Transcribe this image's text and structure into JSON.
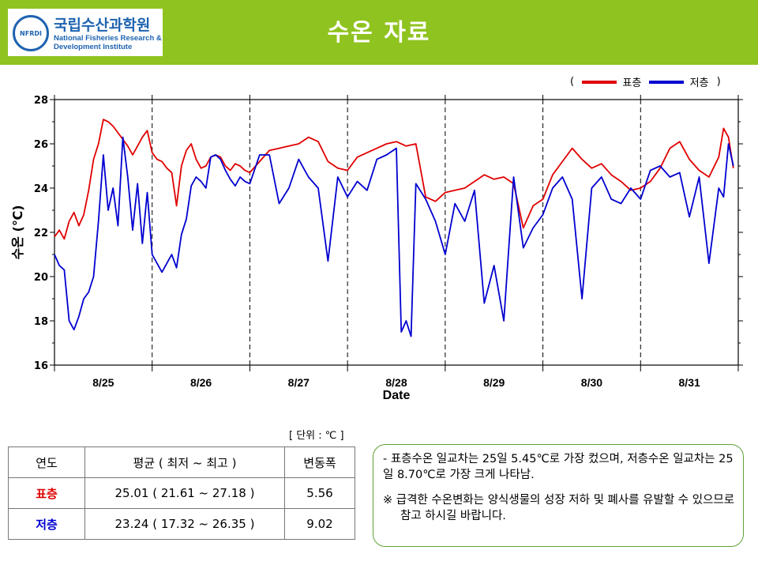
{
  "header": {
    "title": "수온 자료",
    "logo_kr": "국립수산과학원",
    "logo_en_line1": "National Fisheries Research &",
    "logo_en_line2": "Development Institute",
    "logo_emblem": "NFRDI"
  },
  "legend": {
    "open": "(",
    "surface": "표층",
    "bottom": "저층",
    "close": ")"
  },
  "chart_data": {
    "type": "line",
    "xlabel": "Date",
    "ylabel": "수온 (℃)",
    "ylim": [
      16,
      28
    ],
    "yticks": [
      16,
      18,
      20,
      22,
      24,
      26,
      28
    ],
    "x_range": [
      0,
      7
    ],
    "day_labels": [
      "8/25",
      "8/26",
      "8/27",
      "8/28",
      "8/29",
      "8/30",
      "8/31"
    ],
    "grid": "dashed vertical lines at day boundaries",
    "legend_position": "top-right",
    "series": [
      {
        "name": "표층",
        "color": "#e00000",
        "x": [
          0,
          0.05,
          0.1,
          0.15,
          0.2,
          0.25,
          0.3,
          0.35,
          0.4,
          0.45,
          0.5,
          0.55,
          0.6,
          0.65,
          0.7,
          0.75,
          0.8,
          0.85,
          0.9,
          0.95,
          1.0,
          1.05,
          1.1,
          1.15,
          1.2,
          1.25,
          1.3,
          1.35,
          1.4,
          1.45,
          1.5,
          1.55,
          1.6,
          1.65,
          1.7,
          1.75,
          1.8,
          1.85,
          1.9,
          1.95,
          2.0,
          2.1,
          2.2,
          2.3,
          2.4,
          2.5,
          2.6,
          2.7,
          2.8,
          2.9,
          3.0,
          3.1,
          3.2,
          3.3,
          3.4,
          3.5,
          3.6,
          3.7,
          3.8,
          3.9,
          4.0,
          4.1,
          4.2,
          4.3,
          4.4,
          4.5,
          4.6,
          4.7,
          4.8,
          4.9,
          5.0,
          5.1,
          5.2,
          5.3,
          5.4,
          5.5,
          5.6,
          5.7,
          5.8,
          5.9,
          6.0,
          6.1,
          6.2,
          6.3,
          6.4,
          6.5,
          6.6,
          6.7,
          6.8,
          6.85,
          6.9,
          6.95
        ],
        "values": [
          21.8,
          22.1,
          21.7,
          22.5,
          22.9,
          22.3,
          22.8,
          23.9,
          25.3,
          26.0,
          27.1,
          27.0,
          26.8,
          26.5,
          26.2,
          25.9,
          25.5,
          25.9,
          26.3,
          26.6,
          25.6,
          25.3,
          25.2,
          24.9,
          24.7,
          23.2,
          25.0,
          25.7,
          26.0,
          25.3,
          24.9,
          25.0,
          25.4,
          25.5,
          25.4,
          25.0,
          24.8,
          25.1,
          25.0,
          24.8,
          24.7,
          25.2,
          25.7,
          25.8,
          25.9,
          26.0,
          26.3,
          26.1,
          25.2,
          24.9,
          24.8,
          25.4,
          25.6,
          25.8,
          26.0,
          26.1,
          25.9,
          26.0,
          23.6,
          23.4,
          23.8,
          23.9,
          24.0,
          24.3,
          24.6,
          24.4,
          24.5,
          24.2,
          22.2,
          23.2,
          23.5,
          24.6,
          25.2,
          25.8,
          25.3,
          24.9,
          25.1,
          24.6,
          24.3,
          23.9,
          24.0,
          24.3,
          24.9,
          25.8,
          26.1,
          25.3,
          24.8,
          24.5,
          25.4,
          26.7,
          26.3,
          24.9
        ]
      },
      {
        "name": "저층",
        "color": "#0000d0",
        "x": [
          0,
          0.05,
          0.1,
          0.15,
          0.2,
          0.25,
          0.3,
          0.35,
          0.4,
          0.45,
          0.5,
          0.55,
          0.6,
          0.65,
          0.7,
          0.75,
          0.8,
          0.85,
          0.9,
          0.95,
          1.0,
          1.05,
          1.1,
          1.15,
          1.2,
          1.25,
          1.3,
          1.35,
          1.4,
          1.45,
          1.5,
          1.55,
          1.6,
          1.65,
          1.7,
          1.75,
          1.8,
          1.85,
          1.9,
          1.95,
          2.0,
          2.1,
          2.2,
          2.3,
          2.4,
          2.5,
          2.6,
          2.7,
          2.8,
          2.9,
          3.0,
          3.1,
          3.2,
          3.3,
          3.4,
          3.5,
          3.55,
          3.6,
          3.65,
          3.7,
          3.8,
          3.9,
          4.0,
          4.1,
          4.2,
          4.3,
          4.4,
          4.5,
          4.6,
          4.7,
          4.8,
          4.9,
          5.0,
          5.1,
          5.2,
          5.3,
          5.4,
          5.5,
          5.6,
          5.7,
          5.8,
          5.9,
          6.0,
          6.1,
          6.2,
          6.3,
          6.4,
          6.5,
          6.6,
          6.7,
          6.8,
          6.85,
          6.9,
          6.95
        ],
        "values": [
          21.0,
          20.5,
          20.3,
          18.0,
          17.6,
          18.2,
          19.0,
          19.3,
          20.0,
          22.5,
          25.5,
          23.0,
          24.0,
          22.3,
          26.3,
          24.5,
          22.1,
          24.2,
          21.5,
          23.8,
          21.0,
          20.6,
          20.2,
          20.6,
          21.0,
          20.4,
          21.9,
          22.6,
          24.1,
          24.5,
          24.3,
          24.0,
          25.4,
          25.5,
          25.3,
          24.8,
          24.4,
          24.1,
          24.5,
          24.3,
          24.2,
          25.5,
          25.5,
          23.3,
          24.0,
          25.3,
          24.5,
          24.0,
          20.7,
          24.5,
          23.6,
          24.3,
          23.9,
          25.3,
          25.5,
          25.8,
          17.5,
          18.0,
          17.3,
          24.2,
          23.5,
          22.5,
          21.0,
          23.3,
          22.5,
          23.9,
          18.8,
          20.5,
          18.0,
          24.5,
          21.3,
          22.2,
          22.8,
          24.0,
          24.5,
          23.5,
          19.0,
          24.0,
          24.5,
          23.5,
          23.3,
          24.0,
          23.5,
          24.8,
          25.0,
          24.5,
          24.7,
          22.7,
          24.5,
          20.6,
          24.0,
          23.6,
          26.0,
          25.0
        ]
      }
    ]
  },
  "unit_note": "[ 단위 : ℃ ]",
  "table": {
    "headers": [
      "연도",
      "평균 ( 최저 ~ 최고 )",
      "변동폭"
    ],
    "rows": [
      {
        "label": "표층",
        "avg": "25.01 ( 21.61 ~ 27.18 )",
        "range": "5.56"
      },
      {
        "label": "저층",
        "avg": "23.24 ( 17.32 ~ 26.35 )",
        "range": "9.02"
      }
    ]
  },
  "notes": {
    "line1": "- 표층수온 일교차는 25일 5.45℃로 가장 컸으며, 저층수온 일교차는 25일 8.70℃로 가장 크게 나타남.",
    "line2": "※ 급격한 수온변화는 양식생물의 성장 저하 및 폐사를 유발할 수 있으므로 참고 하시길 바랍니다."
  }
}
